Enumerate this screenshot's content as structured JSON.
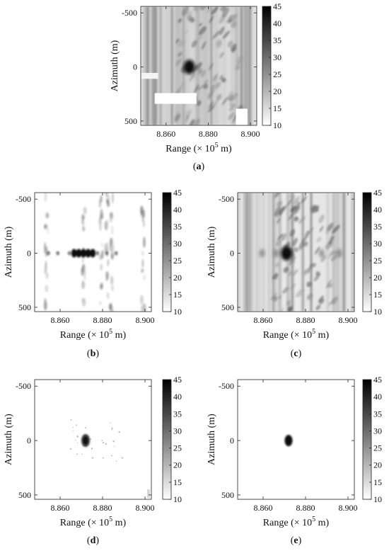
{
  "chart_data": [
    {
      "id": "a",
      "type": "heatmap",
      "caption": "a",
      "xlabel_text": "Range (× 10",
      "xlabel_exp": "5",
      "xlabel_unit": " m)",
      "ylabel": "Azimuth (m)",
      "x_ticks": [
        "8.860",
        "8.880",
        "8.900"
      ],
      "x_tick_values": [
        8.86,
        8.88,
        8.9
      ],
      "y_ticks": [
        "-500",
        "0",
        "500"
      ],
      "y_tick_values": [
        -500,
        0,
        500
      ],
      "xlim": [
        8.848,
        8.903
      ],
      "ylim": [
        -560,
        540
      ],
      "colorbar": {
        "ticks": [
          "45",
          "40",
          "35",
          "30",
          "25",
          "20",
          "15",
          "10"
        ],
        "min": 10,
        "max": 45
      },
      "target": {
        "range": 8.871,
        "azimuth": 0
      },
      "style": "full-background"
    },
    {
      "id": "b",
      "type": "heatmap",
      "caption": "b",
      "xlabel_text": "Range (× 10",
      "xlabel_exp": "5",
      "xlabel_unit": " m)",
      "ylabel": "Azimuth (m)",
      "x_ticks": [
        "8.860",
        "8.880",
        "8.900"
      ],
      "x_tick_values": [
        8.86,
        8.88,
        8.9
      ],
      "y_ticks": [
        "-500",
        "0",
        "500"
      ],
      "y_tick_values": [
        -500,
        0,
        500
      ],
      "xlim": [
        8.848,
        8.903
      ],
      "ylim": [
        -560,
        540
      ],
      "colorbar": {
        "ticks": [
          "45",
          "40",
          "35",
          "30",
          "25",
          "20",
          "15",
          "10"
        ],
        "min": 10,
        "max": 45
      },
      "target": {
        "range": 8.871,
        "azimuth": 0
      },
      "style": "sparse-streaks"
    },
    {
      "id": "c",
      "type": "heatmap",
      "caption": "c",
      "xlabel_text": "Range (× 10",
      "xlabel_exp": "5",
      "xlabel_unit": " m)",
      "ylabel": "Azimuth (m)",
      "x_ticks": [
        "8.860",
        "8.880",
        "8.900"
      ],
      "x_tick_values": [
        8.86,
        8.88,
        8.9
      ],
      "y_ticks": [
        "-500",
        "0",
        "500"
      ],
      "y_tick_values": [
        -500,
        0,
        500
      ],
      "xlim": [
        8.848,
        8.903
      ],
      "ylim": [
        -560,
        540
      ],
      "colorbar": {
        "ticks": [
          "45",
          "40",
          "35",
          "30",
          "25",
          "20",
          "15",
          "10"
        ],
        "min": 10,
        "max": 45
      },
      "target": {
        "range": 8.871,
        "azimuth": 0
      },
      "style": "dense-sidelobes"
    },
    {
      "id": "d",
      "type": "heatmap",
      "caption": "d",
      "xlabel_text": "Range (× 10",
      "xlabel_exp": "5",
      "xlabel_unit": " m)",
      "ylabel": "Azimuth (m)",
      "x_ticks": [
        "8.860",
        "8.880",
        "8.900"
      ],
      "x_tick_values": [
        8.86,
        8.88,
        8.9
      ],
      "y_ticks": [
        "-500",
        "0",
        "500"
      ],
      "y_tick_values": [
        -500,
        0,
        500
      ],
      "xlim": [
        8.848,
        8.903
      ],
      "ylim": [
        -560,
        540
      ],
      "colorbar": {
        "ticks": [
          "45",
          "40",
          "35",
          "30",
          "25",
          "20",
          "15",
          "10"
        ],
        "min": 10,
        "max": 45
      },
      "target": {
        "range": 8.872,
        "azimuth": 0
      },
      "style": "focused-residual"
    },
    {
      "id": "e",
      "type": "heatmap",
      "caption": "e",
      "xlabel_text": "Range (× 10",
      "xlabel_exp": "5",
      "xlabel_unit": " m)",
      "ylabel": "Azimuth (m)",
      "x_ticks": [
        "8.860",
        "8.880",
        "8.900"
      ],
      "x_tick_values": [
        8.86,
        8.88,
        8.9
      ],
      "y_ticks": [
        "-500",
        "0",
        "500"
      ],
      "y_tick_values": [
        -500,
        0,
        500
      ],
      "xlim": [
        8.848,
        8.903
      ],
      "ylim": [
        -560,
        540
      ],
      "colorbar": {
        "ticks": [
          "45",
          "40",
          "35",
          "30",
          "25",
          "20",
          "15",
          "10"
        ],
        "min": 10,
        "max": 45
      },
      "target": {
        "range": 8.872,
        "azimuth": 0
      },
      "style": "clean"
    }
  ]
}
